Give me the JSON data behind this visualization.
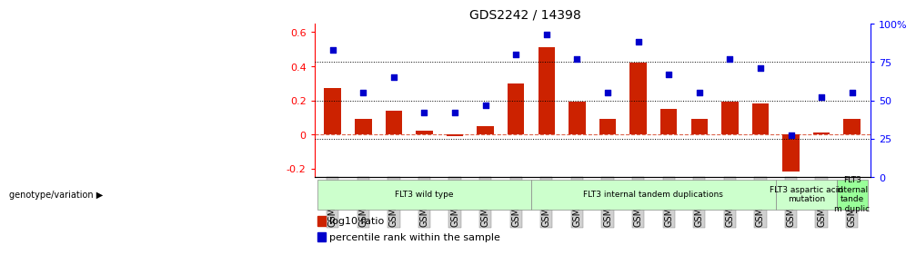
{
  "title": "GDS2242 / 14398",
  "samples": [
    "GSM48254",
    "GSM48507",
    "GSM48510",
    "GSM48546",
    "GSM48584",
    "GSM48585",
    "GSM48586",
    "GSM48255",
    "GSM48501",
    "GSM48503",
    "GSM48539",
    "GSM48543",
    "GSM48587",
    "GSM48588",
    "GSM48253",
    "GSM48350",
    "GSM48541",
    "GSM48252"
  ],
  "log10_ratio": [
    0.27,
    0.09,
    0.14,
    0.02,
    -0.01,
    0.05,
    0.3,
    0.51,
    0.19,
    0.09,
    0.42,
    0.15,
    0.09,
    0.19,
    0.18,
    -0.22,
    0.01,
    0.09
  ],
  "percentile_rank": [
    83,
    55,
    65,
    42,
    42,
    47,
    80,
    93,
    77,
    55,
    88,
    67,
    55,
    77,
    71,
    27,
    52,
    55
  ],
  "groups": [
    {
      "label": "FLT3 wild type",
      "start": 0,
      "end": 7,
      "color": "#ccffcc"
    },
    {
      "label": "FLT3 internal tandem duplications",
      "start": 7,
      "end": 15,
      "color": "#ccffcc"
    },
    {
      "label": "FLT3 aspartic acid\nmutation",
      "start": 15,
      "end": 17,
      "color": "#ccffcc"
    },
    {
      "label": "FLT3\ninternal\ntande\nm duplic",
      "start": 17,
      "end": 18,
      "color": "#99ff99"
    }
  ],
  "ylim_left": [
    -0.25,
    0.65
  ],
  "ylim_right": [
    0,
    100
  ],
  "bar_color": "#cc2200",
  "dot_color": "#0000cc",
  "background_color": "#ffffff",
  "plot_bg": "#ffffff"
}
